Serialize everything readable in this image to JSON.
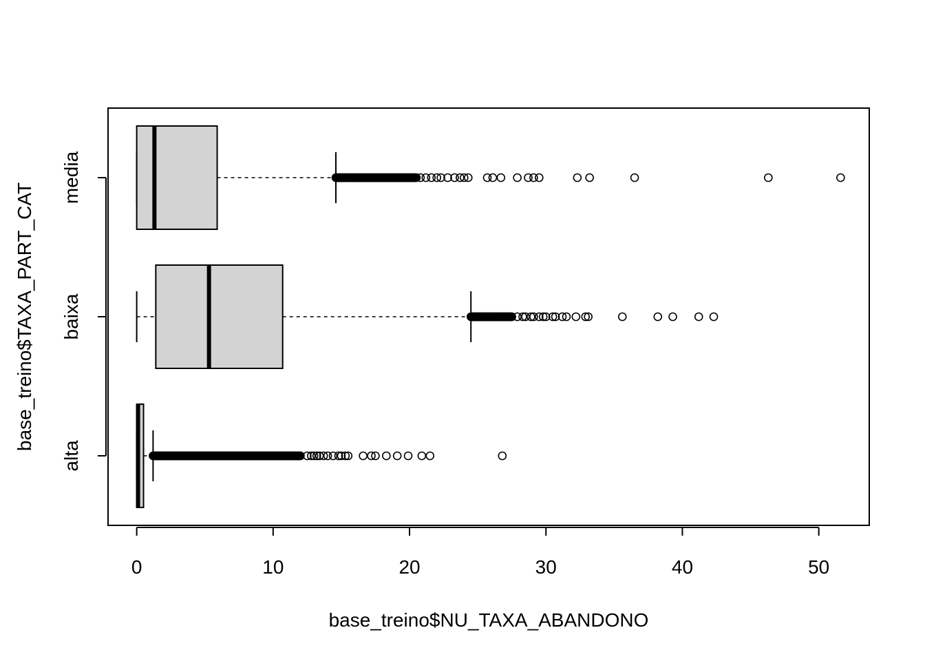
{
  "chart_data": {
    "type": "boxplot",
    "orientation": "horizontal",
    "title": "",
    "xlabel": "base_treino$NU_TAXA_ABANDONO",
    "ylabel": "base_treino$TAXA_PART_CAT",
    "xlim": [
      -2.1,
      53.7
    ],
    "x_ticks": [
      0,
      10,
      20,
      30,
      40,
      50
    ],
    "x_tick_labels": [
      "0",
      "10",
      "20",
      "30",
      "40",
      "50"
    ],
    "categories": [
      "alta",
      "baixa",
      "media"
    ],
    "box_fill": "#d3d3d3",
    "stroke_color": "#000000",
    "boxes": [
      {
        "category": "alta",
        "min": 0.0,
        "q1": 0.0,
        "median": 0.1,
        "q3": 0.5,
        "max": 1.2,
        "outlier_dense_range": [
          1.2,
          12.0
        ],
        "outliers": [
          12.5,
          12.8,
          13.0,
          13.2,
          13.4,
          13.7,
          14.0,
          14.4,
          14.8,
          15.0,
          15.3,
          15.5,
          16.6,
          17.2,
          17.5,
          18.3,
          19.1,
          19.9,
          20.9,
          21.5,
          26.8
        ]
      },
      {
        "category": "baixa",
        "min": 0.0,
        "q1": 1.4,
        "median": 5.3,
        "q3": 10.7,
        "max": 24.5,
        "outlier_dense_range": [
          24.5,
          27.5
        ],
        "outliers": [
          27.9,
          28.3,
          28.5,
          28.9,
          29.1,
          29.5,
          29.8,
          30.0,
          30.5,
          30.7,
          31.2,
          31.5,
          32.2,
          32.9,
          33.1,
          35.6,
          38.2,
          39.3,
          41.2,
          42.3
        ]
      },
      {
        "category": "media",
        "min": 0.0,
        "q1": 0.0,
        "median": 1.3,
        "q3": 5.9,
        "max": 14.6,
        "outlier_dense_range": [
          14.6,
          20.5
        ],
        "outliers": [
          20.8,
          21.2,
          21.6,
          22.0,
          22.3,
          22.8,
          23.3,
          23.7,
          24.0,
          24.3,
          25.7,
          26.1,
          26.7,
          27.9,
          28.7,
          29.1,
          29.5,
          32.3,
          33.2,
          36.5,
          46.3,
          51.6
        ]
      }
    ]
  }
}
